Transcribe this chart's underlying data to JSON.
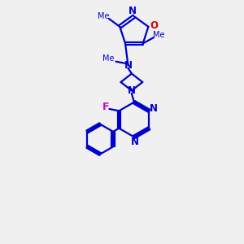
{
  "bg_color": "#f0f0f0",
  "bond_color": "#0000cd",
  "n_color": "#0000cd",
  "o_color": "#cc0000",
  "f_color": "#cc00cc",
  "line_width": 1.6,
  "fig_width": 3.0,
  "fig_height": 3.0,
  "dpi": 100,
  "xlim": [
    0,
    10
  ],
  "ylim": [
    0,
    10
  ]
}
